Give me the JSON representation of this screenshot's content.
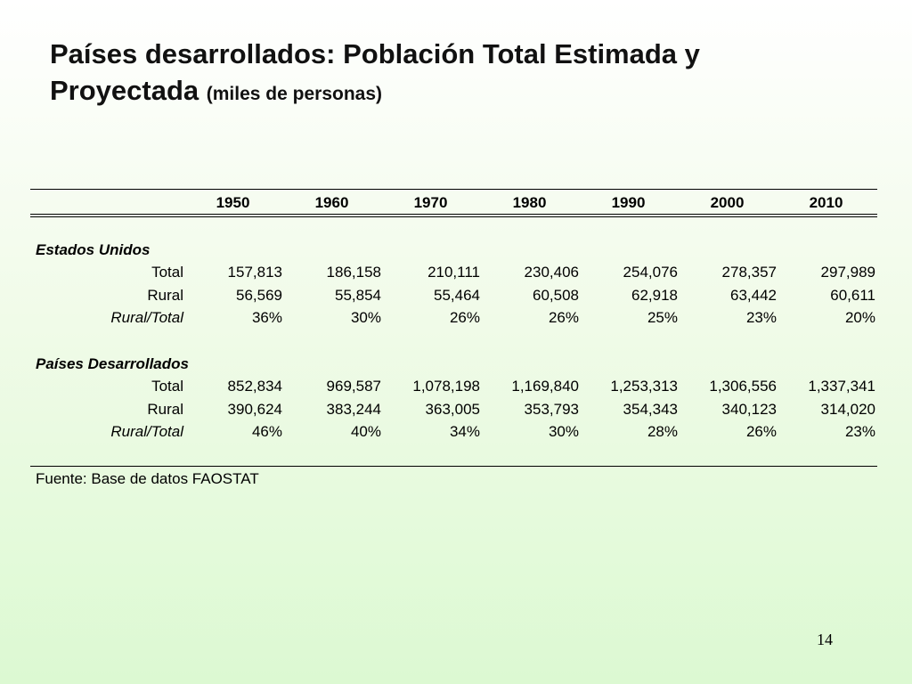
{
  "title": {
    "main": "Países desarrollados:  Población Total Estimada y Proyectada",
    "sub": "(miles de personas)"
  },
  "table": {
    "years": [
      "1950",
      "1960",
      "1970",
      "1980",
      "1990",
      "2000",
      "2010"
    ],
    "groups": [
      {
        "name": "Estados Unidos",
        "rows": [
          {
            "label": "Total",
            "italic": false,
            "values": [
              "157,813",
              "186,158",
              "210,111",
              "230,406",
              "254,076",
              "278,357",
              "297,989"
            ]
          },
          {
            "label": "Rural",
            "italic": false,
            "values": [
              "56,569",
              "55,854",
              "55,464",
              "60,508",
              "62,918",
              "63,442",
              "60,611"
            ]
          },
          {
            "label": "Rural/Total",
            "italic": true,
            "values": [
              "36%",
              "30%",
              "26%",
              "26%",
              "25%",
              "23%",
              "20%"
            ]
          }
        ]
      },
      {
        "name": "Países Desarrollados",
        "rows": [
          {
            "label": "Total",
            "italic": false,
            "values": [
              "852,834",
              "969,587",
              "1,078,198",
              "1,169,840",
              "1,253,313",
              "1,306,556",
              "1,337,341"
            ]
          },
          {
            "label": "Rural",
            "italic": false,
            "values": [
              "390,624",
              "383,244",
              "363,005",
              "353,793",
              "354,343",
              "340,123",
              "314,020"
            ]
          },
          {
            "label": "Rural/Total",
            "italic": true,
            "values": [
              "46%",
              "40%",
              "34%",
              "30%",
              "28%",
              "26%",
              "23%"
            ]
          }
        ]
      }
    ]
  },
  "source": "Fuente: Base de datos FAOSTAT",
  "page_number": "14"
}
